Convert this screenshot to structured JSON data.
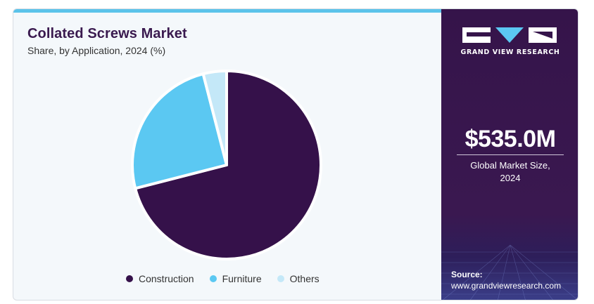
{
  "header": {
    "title": "Collated Screws Market",
    "subtitle": "Share, by Application, 2024 (%)"
  },
  "chart_data": {
    "type": "pie",
    "title": "Collated Screws Market",
    "subtitle": "Share, by Application, 2024 (%)",
    "categories": [
      "Construction",
      "Furniture",
      "Others"
    ],
    "values": [
      71,
      25,
      4
    ],
    "colors": [
      "#35114a",
      "#5bc8f2",
      "#c4e8f8"
    ],
    "legend_position": "bottom"
  },
  "sidebar": {
    "brand": "GRAND VIEW RESEARCH",
    "market_size": "$535.0M",
    "market_label_line1": "Global Market Size,",
    "market_label_line2": "2024",
    "source_label": "Source:",
    "source_url": "www.grandviewresearch.com"
  },
  "colors": {
    "accent_bar": "#5bc3ea",
    "sidebar_bg": "#35144a",
    "title_color": "#3a1a4f"
  }
}
